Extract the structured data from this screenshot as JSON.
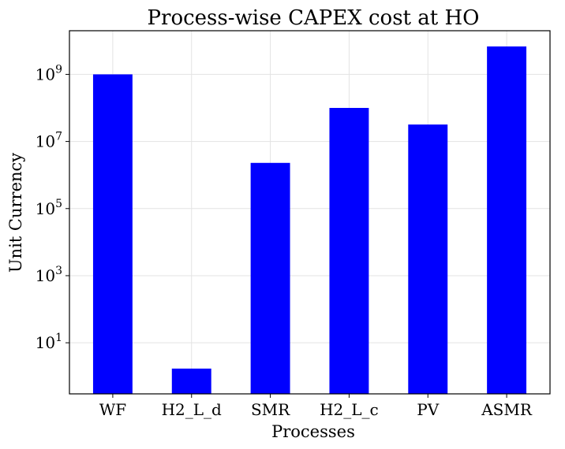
{
  "chart_data": {
    "type": "bar",
    "title": "Process-wise CAPEX cost at HO",
    "xlabel": "Processes",
    "ylabel": "Unit Currency",
    "categories": [
      "WF",
      "H2_L_d",
      "SMR",
      "H2_L_c",
      "PV",
      "ASMR"
    ],
    "values": [
      1000000000,
      1.7,
      2300000,
      100000000,
      32000000,
      6800000000
    ],
    "yscale": "log",
    "ylim": [
      0.3,
      20000000000
    ],
    "yticks": [
      10,
      1000,
      100000,
      10000000,
      1000000000
    ],
    "grid": true,
    "bar_color": "#0000ff"
  }
}
